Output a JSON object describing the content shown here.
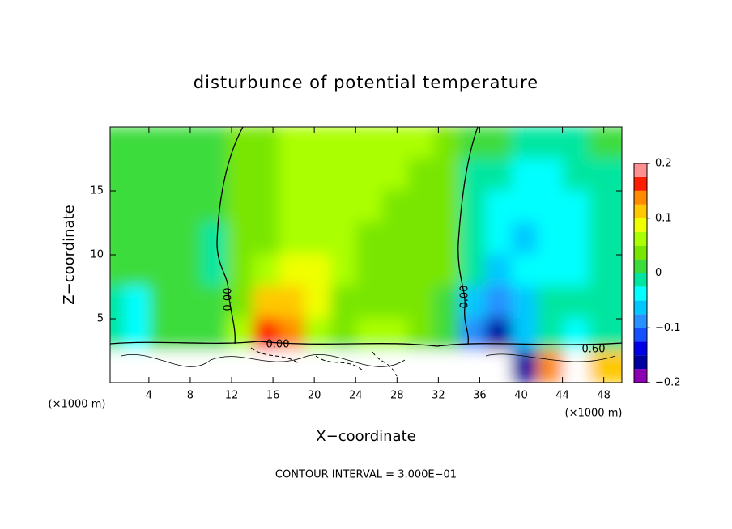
{
  "chart_data": {
    "type": "contour",
    "title": "disturbunce of potential temperature",
    "xlabel": "X−coordinate",
    "ylabel": "Z−coordinate",
    "x_unit_label": "(×1000 m)",
    "footnote": "CONTOUR INTERVAL = 3.000E−01",
    "contour_labels": [
      "0.00",
      "0.00",
      "0.00",
      "0.60"
    ],
    "xlim": [
      0.25,
      49.75
    ],
    "ylim": [
      0,
      20
    ],
    "xticks": [
      4,
      8,
      12,
      16,
      20,
      24,
      28,
      32,
      36,
      40,
      44,
      48
    ],
    "yticks": [
      5,
      10,
      15
    ],
    "clim": [
      -0.2,
      0.2
    ],
    "cticks": [
      0.2,
      0.1,
      0,
      {
        "value": -0.1,
        "label": "−0.1"
      },
      {
        "value": -0.2,
        "label": "−0.2"
      }
    ],
    "levels": [
      -0.2,
      -0.175,
      -0.15,
      -0.125,
      -0.1,
      -0.075,
      -0.05,
      -0.025,
      0,
      0.025,
      0.05,
      0.075,
      0.1,
      0.125,
      0.15,
      0.175,
      0.2
    ],
    "colors": [
      "#8c00b4",
      "#0000a0",
      "#0000e6",
      "#1450ff",
      "#2890ff",
      "#00c8ff",
      "#00ffff",
      "#00e6a0",
      "#3cdc3c",
      "#78e600",
      "#aaff00",
      "#f0ff00",
      "#ffc800",
      "#ff8c00",
      "#ff1e00",
      "#ff9090"
    ],
    "field": {
      "x": [
        1.25,
        3.75,
        6.25,
        8.75,
        11.25,
        13.75,
        16.25,
        18.75,
        21.25,
        23.75,
        26.25,
        28.75,
        31.25,
        33.75,
        36.25,
        38.75,
        41.25,
        43.75,
        46.25,
        48.75
      ],
      "z": [
        18.75,
        16.25,
        13.75,
        11.25,
        8.75,
        6.25,
        3.75,
        1.25
      ],
      "values": [
        [
          0.02,
          0.02,
          0.02,
          0.02,
          0.01,
          0.03,
          0.05,
          0.06,
          0.06,
          0.07,
          0.07,
          0.06,
          0.06,
          0.05,
          0.02,
          0.01,
          0.0,
          0.0,
          0.0,
          0.01
        ],
        [
          0.02,
          0.02,
          0.02,
          0.01,
          0.01,
          0.04,
          0.05,
          0.06,
          0.07,
          0.07,
          0.06,
          0.06,
          0.05,
          0.04,
          0.0,
          -0.02,
          -0.03,
          -0.03,
          -0.02,
          0.0
        ],
        [
          0.02,
          0.02,
          0.02,
          0.01,
          0.01,
          0.04,
          0.05,
          0.06,
          0.07,
          0.06,
          0.06,
          0.05,
          0.05,
          0.03,
          -0.01,
          -0.03,
          -0.04,
          -0.04,
          -0.03,
          -0.01
        ],
        [
          0.02,
          0.01,
          0.02,
          0.01,
          0.0,
          0.04,
          0.05,
          0.06,
          0.06,
          0.06,
          0.05,
          0.05,
          0.04,
          0.03,
          -0.01,
          -0.03,
          -0.05,
          -0.04,
          -0.03,
          -0.02
        ],
        [
          0.02,
          0.01,
          0.02,
          0.02,
          0.0,
          0.04,
          0.07,
          0.09,
          0.08,
          0.06,
          0.05,
          0.05,
          0.04,
          0.03,
          -0.02,
          -0.05,
          -0.04,
          -0.03,
          -0.03,
          -0.01
        ],
        [
          -0.02,
          -0.03,
          0.02,
          0.02,
          0.01,
          0.05,
          0.11,
          0.11,
          0.08,
          0.05,
          0.04,
          0.05,
          0.04,
          0.02,
          -0.06,
          -0.09,
          -0.05,
          -0.02,
          -0.02,
          -0.02
        ],
        [
          -0.02,
          -0.03,
          0.01,
          0.02,
          0.02,
          0.07,
          0.16,
          0.13,
          0.07,
          0.05,
          0.06,
          0.06,
          0.04,
          0.02,
          -0.08,
          -0.16,
          -0.05,
          -0.02,
          -0.03,
          -0.02
        ],
        [
          0.5,
          0.5,
          0.5,
          0.5,
          0.5,
          0.5,
          0.5,
          0.5,
          0.5,
          0.5,
          0.5,
          0.5,
          0.5,
          0.5,
          0.5,
          0.5,
          -0.15,
          0.15,
          0.5,
          0.12
        ]
      ]
    }
  }
}
